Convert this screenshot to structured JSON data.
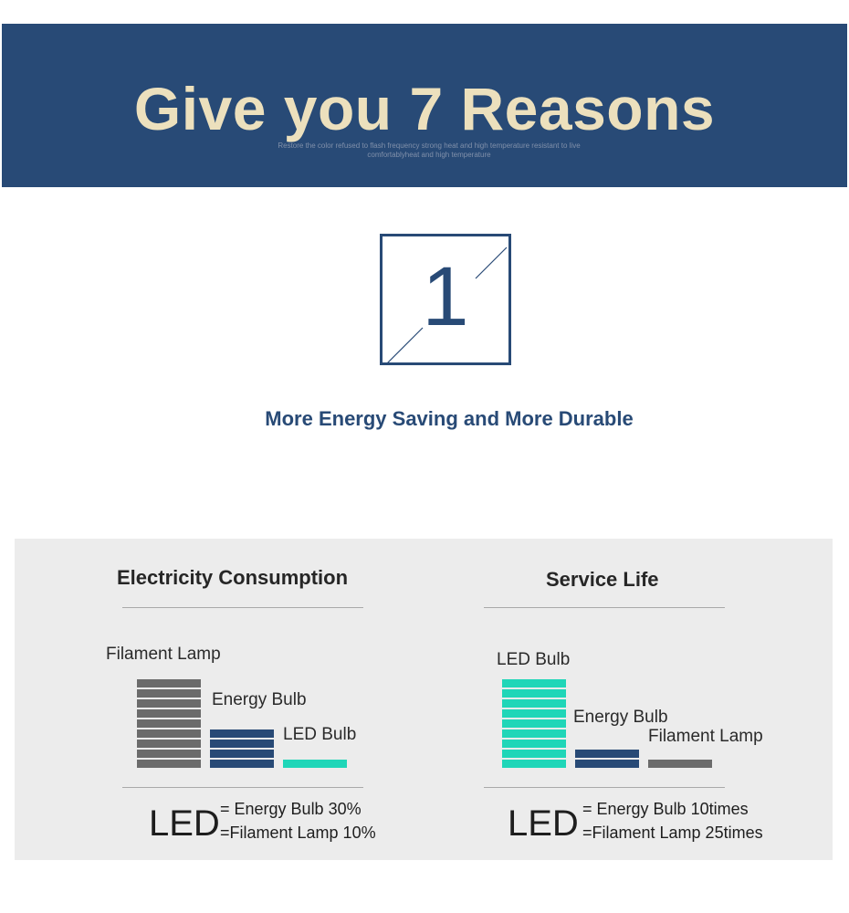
{
  "banner": {
    "title": "Give you 7 Reasons",
    "subtitle_line1": "Restore the color refused to flash frequency strong heat and high temperature resistant to live",
    "subtitle_line2": "comfortablyheat and high temperature"
  },
  "reason": {
    "number": "1",
    "headline": "More Energy Saving and More Durable"
  },
  "colors": {
    "navy": "#284a76",
    "cream": "#ece0bd",
    "gray_bar": "#6b6b6b",
    "navy_bar": "#284a76",
    "teal_bar": "#1fd6b8"
  },
  "electricity": {
    "heading": "Electricity Consumption",
    "labels": {
      "filament": "Filament Lamp",
      "energy": "Energy Bulb",
      "led": "LED Bulb"
    },
    "led_word": "LED",
    "eq1": "= Energy Bulb 30%",
    "eq2": "=Filament Lamp 10%"
  },
  "service": {
    "heading": "Service Life",
    "labels": {
      "led": "LED Bulb",
      "energy": "Energy Bulb",
      "filament": "Filament Lamp"
    },
    "led_word": "LED",
    "eq1": "= Energy Bulb 10times",
    "eq2": "=Filament Lamp 25times"
  }
}
